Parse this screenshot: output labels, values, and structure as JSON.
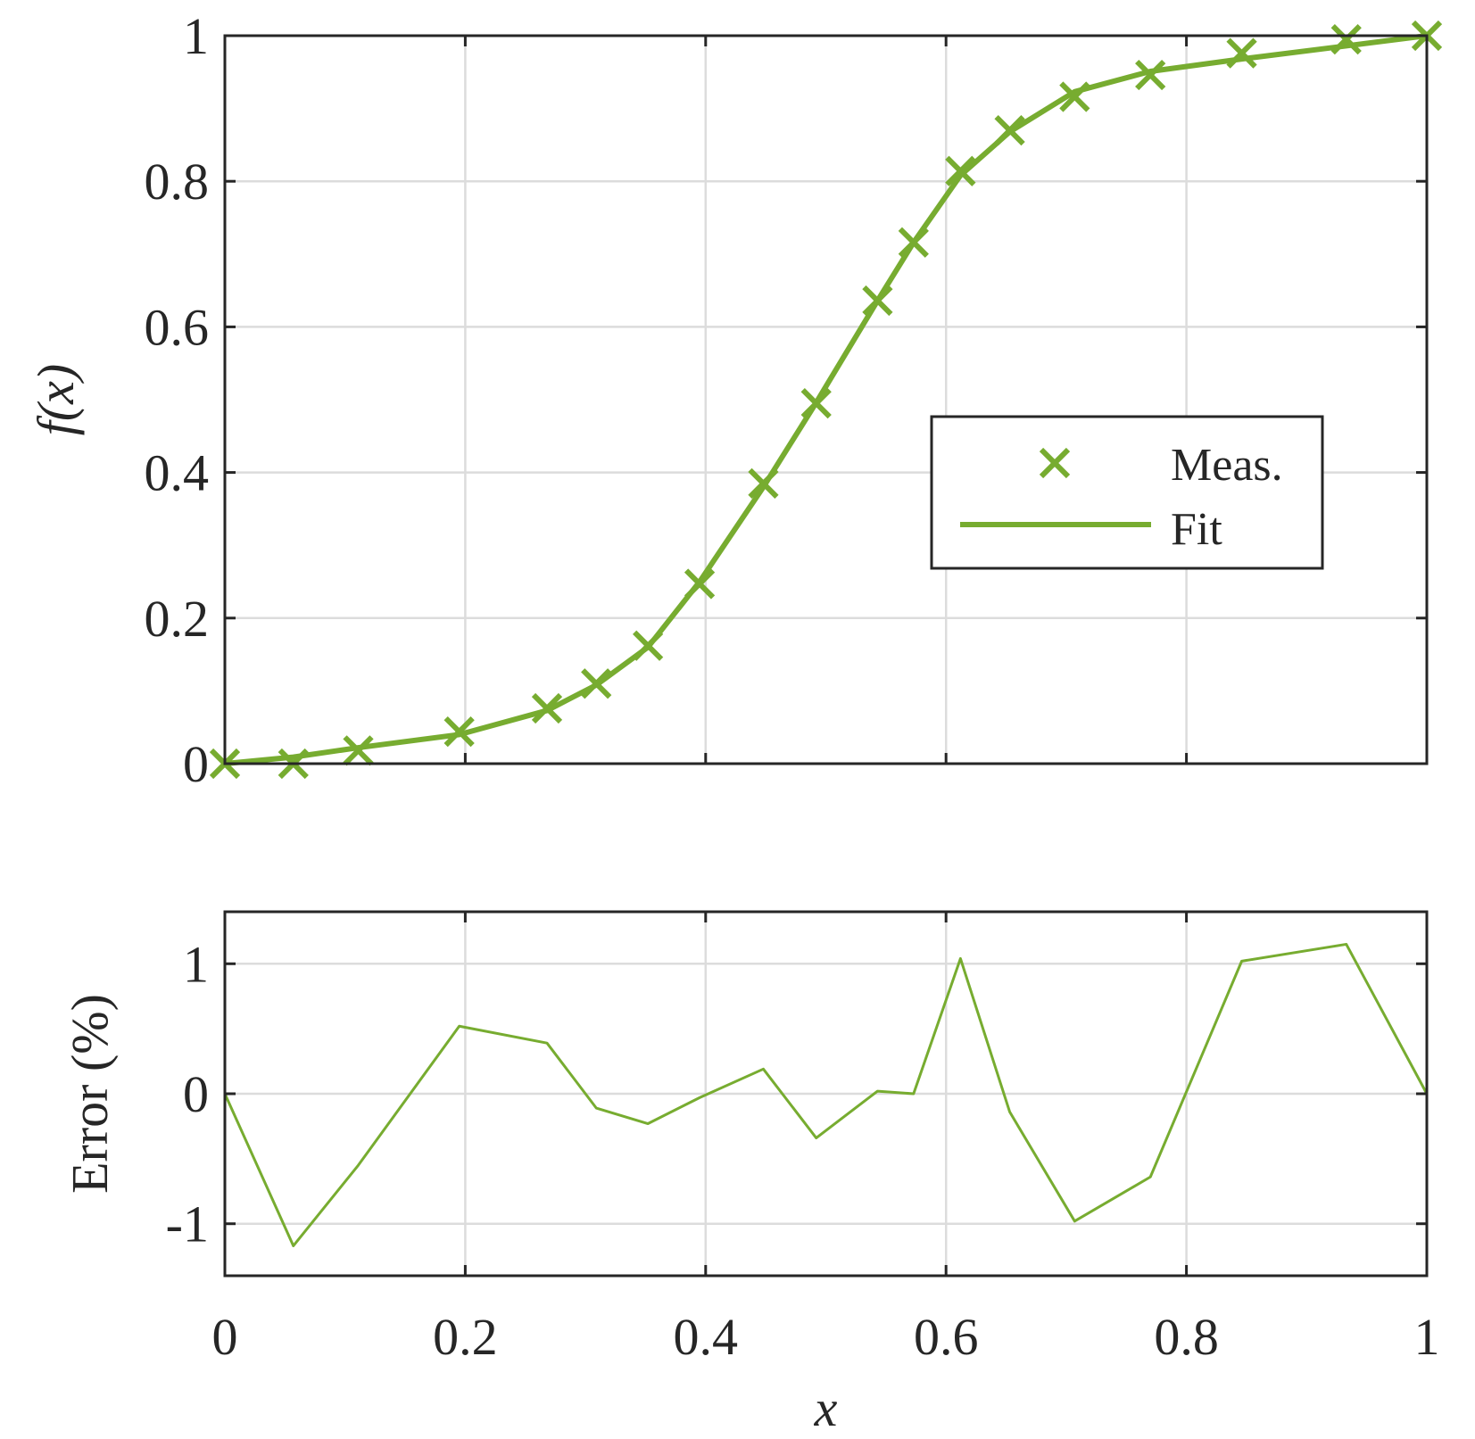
{
  "colors": {
    "series": "#77ac30",
    "axis": "#262626",
    "grid": "#dcdcdc"
  },
  "chart_data": [
    {
      "type": "line",
      "xlabel": "",
      "ylabel": "f(x)",
      "xlim": [
        0,
        1
      ],
      "ylim": [
        0,
        1
      ],
      "grid": true,
      "legend_position": "center-right",
      "xticks": [
        0,
        0.2,
        0.4,
        0.6,
        0.8,
        1
      ],
      "yticks": [
        0,
        0.2,
        0.4,
        0.6,
        0.8,
        1
      ],
      "ytick_labels": [
        "0",
        "0.2",
        "0.4",
        "0.6",
        "0.8",
        "1"
      ],
      "series": [
        {
          "name": "Meas.",
          "style": "markers-x",
          "x": [
            0,
            0.057,
            0.111,
            0.195,
            0.268,
            0.309,
            0.352,
            0.395,
            0.448,
            0.492,
            0.543,
            0.573,
            0.612,
            0.653,
            0.707,
            0.77,
            0.846,
            0.933,
            1.0
          ],
          "y": [
            0.0,
            0.0,
            0.018,
            0.044,
            0.076,
            0.11,
            0.162,
            0.247,
            0.385,
            0.495,
            0.636,
            0.716,
            0.814,
            0.87,
            0.916,
            0.946,
            0.976,
            0.995,
            1.0
          ]
        },
        {
          "name": "Fit",
          "style": "line",
          "x": [
            0,
            0.057,
            0.111,
            0.195,
            0.268,
            0.309,
            0.352,
            0.395,
            0.448,
            0.492,
            0.543,
            0.573,
            0.612,
            0.653,
            0.707,
            0.77,
            0.846,
            0.933,
            1.0
          ],
          "y": [
            0.0,
            0.009,
            0.022,
            0.04,
            0.073,
            0.108,
            0.16,
            0.25,
            0.38,
            0.496,
            0.636,
            0.716,
            0.808,
            0.868,
            0.923,
            0.951,
            0.968,
            0.986,
            1.0
          ]
        }
      ]
    },
    {
      "type": "line",
      "xlabel": "x",
      "ylabel": "Error (%)",
      "xlim": [
        0,
        1
      ],
      "ylim": [
        -1.4,
        1.4
      ],
      "grid": true,
      "xticks": [
        0,
        0.2,
        0.4,
        0.6,
        0.8,
        1
      ],
      "xtick_labels": [
        "0",
        "0.2",
        "0.4",
        "0.6",
        "0.8",
        "1"
      ],
      "yticks": [
        -1,
        0,
        1
      ],
      "ytick_labels": [
        "-1",
        "0",
        "1"
      ],
      "series": [
        {
          "style": "line",
          "x": [
            0,
            0.057,
            0.111,
            0.195,
            0.268,
            0.309,
            0.352,
            0.395,
            0.448,
            0.492,
            0.543,
            0.573,
            0.612,
            0.653,
            0.707,
            0.77,
            0.846,
            0.933,
            1.0
          ],
          "y": [
            0.0,
            -1.17,
            -0.55,
            0.52,
            0.39,
            -0.11,
            -0.23,
            -0.03,
            0.19,
            -0.34,
            0.02,
            0.0,
            1.04,
            -0.14,
            -0.98,
            -0.64,
            1.02,
            1.15,
            0.0
          ]
        }
      ]
    }
  ]
}
